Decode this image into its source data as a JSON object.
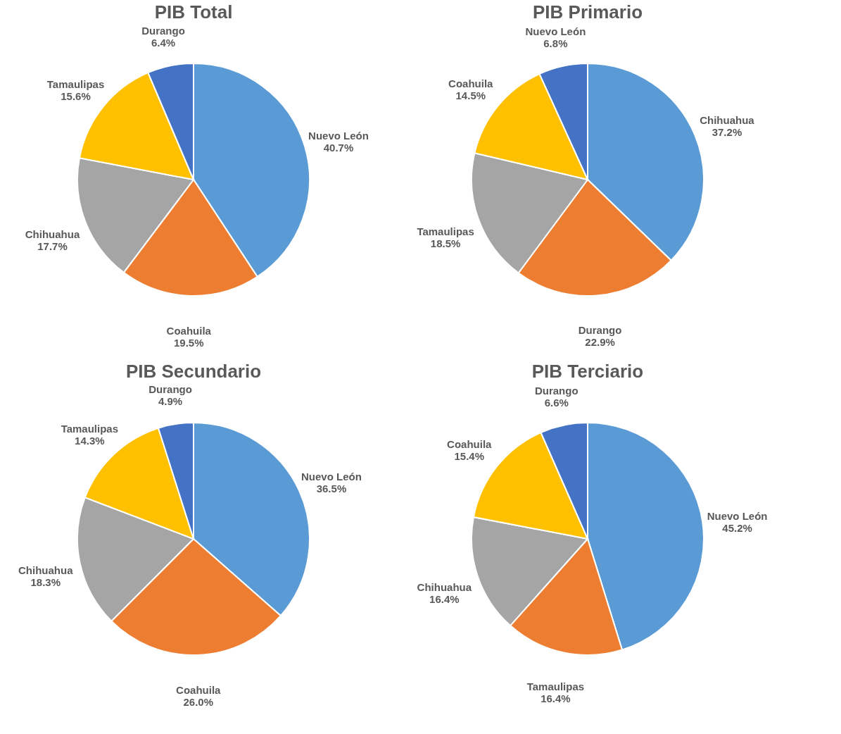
{
  "chart_data": [
    {
      "type": "pie",
      "title": "PIB Total",
      "categories": [
        "Nuevo León",
        "Coahuila",
        "Chihuahua",
        "Tamaulipas",
        "Durango"
      ],
      "values": [
        40.7,
        19.5,
        17.7,
        15.6,
        6.4
      ],
      "value_labels": [
        "40.7%",
        "19.5%",
        "17.7%",
        "15.6%",
        "6.4%"
      ],
      "colors": [
        "#5b9bd5",
        "#ed7d31",
        "#a5a5a5",
        "#ffc000",
        "#4472c4"
      ]
    },
    {
      "type": "pie",
      "title": "PIB Primario",
      "categories": [
        "Chihuahua",
        "Durango",
        "Tamaulipas",
        "Coahuila",
        "Nuevo León"
      ],
      "values": [
        37.2,
        22.9,
        18.5,
        14.5,
        6.8
      ],
      "value_labels": [
        "37.2%",
        "22.9%",
        "18.5%",
        "14.5%",
        "6.8%"
      ],
      "colors": [
        "#5b9bd5",
        "#ed7d31",
        "#a5a5a5",
        "#ffc000",
        "#4472c4"
      ]
    },
    {
      "type": "pie",
      "title": "PIB Secundario",
      "categories": [
        "Nuevo León",
        "Coahuila",
        "Chihuahua",
        "Tamaulipas",
        "Durango"
      ],
      "values": [
        36.5,
        26.0,
        18.3,
        14.3,
        4.9
      ],
      "value_labels": [
        "36.5%",
        "26.0%",
        "18.3%",
        "14.3%",
        "4.9%"
      ],
      "colors": [
        "#5b9bd5",
        "#ed7d31",
        "#a5a5a5",
        "#ffc000",
        "#4472c4"
      ]
    },
    {
      "type": "pie",
      "title": "PIB Terciario",
      "categories": [
        "Nuevo León",
        "Tamaulipas",
        "Chihuahua",
        "Coahuila",
        "Durango"
      ],
      "values": [
        45.2,
        16.4,
        16.4,
        15.4,
        6.6
      ],
      "value_labels": [
        "45.2%",
        "16.4%",
        "16.4%",
        "15.4%",
        "6.6%"
      ],
      "colors": [
        "#5b9bd5",
        "#ed7d31",
        "#a5a5a5",
        "#ffc000",
        "#4472c4"
      ]
    }
  ]
}
